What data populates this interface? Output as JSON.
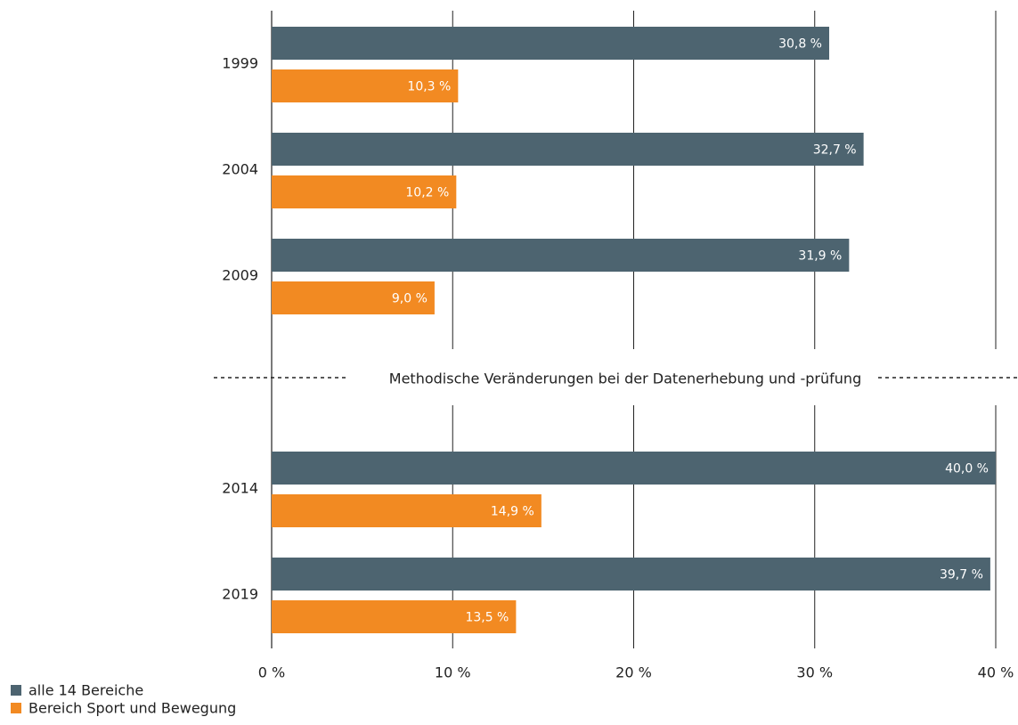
{
  "chart_data": {
    "type": "hbar",
    "categories": [
      "1999",
      "2004",
      "2009",
      "2014",
      "2019"
    ],
    "annotation": "Methodische Veränderungen bei der Datenerhebung und -prüfung",
    "series": [
      {
        "name": "alle 14 Bereiche",
        "color": "#4d6470",
        "values": [
          30.8,
          32.7,
          31.9,
          40.0,
          39.7
        ],
        "value_labels": [
          "30,8 %",
          "32,7 %",
          "31,9 %",
          "40,0 %",
          "39,7 %"
        ]
      },
      {
        "name": "Bereich Sport und Bewegung",
        "color": "#f28a22",
        "values": [
          10.3,
          10.2,
          9.0,
          14.9,
          13.5
        ],
        "value_labels": [
          "10,3 %",
          "10,2 %",
          "9,0 %",
          "14,9 %",
          "13,5 %"
        ]
      }
    ],
    "xlim": [
      0,
      40
    ],
    "xticks": [
      {
        "value": 0,
        "label": "0 %"
      },
      {
        "value": 10,
        "label": "10 %"
      },
      {
        "value": 20,
        "label": "20 %"
      },
      {
        "value": 30,
        "label": "30 %"
      },
      {
        "value": 40,
        "label": "40 %"
      }
    ],
    "grid": true
  }
}
